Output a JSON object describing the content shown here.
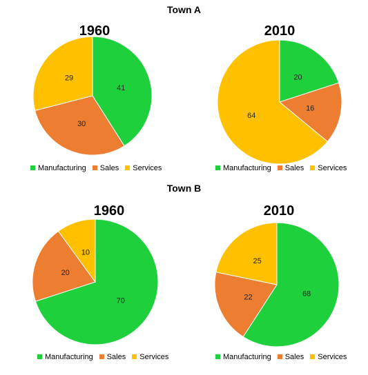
{
  "colors": {
    "Manufacturing": "#1ED13C",
    "Sales": "#ED7D31",
    "Services": "#FFC000"
  },
  "town_a": {
    "title": "Town A"
  },
  "town_b": {
    "title": "Town B"
  },
  "chart_data": [
    {
      "type": "pie",
      "group": "Town A",
      "title": "1960",
      "slices": [
        {
          "label": "Manufacturing",
          "value": 41
        },
        {
          "label": "Sales",
          "value": 30
        },
        {
          "label": "Services",
          "value": 29
        }
      ],
      "legend": [
        "Manufacturing",
        "Sales",
        "Services"
      ]
    },
    {
      "type": "pie",
      "group": "Town A",
      "title": "2010",
      "slices": [
        {
          "label": "Manufacturing",
          "value": 20
        },
        {
          "label": "Sales",
          "value": 16
        },
        {
          "label": "Services",
          "value": 64
        }
      ],
      "legend": [
        "Manufacturing",
        "Sales",
        "Services"
      ]
    },
    {
      "type": "pie",
      "group": "Town B",
      "title": "1960",
      "slices": [
        {
          "label": "Manufacturing",
          "value": 70
        },
        {
          "label": "Sales",
          "value": 20
        },
        {
          "label": "Services",
          "value": 10
        }
      ],
      "legend": [
        "Manufacturing",
        "Sales",
        "Services"
      ]
    },
    {
      "type": "pie",
      "group": "Town B",
      "title": "2010",
      "slices": [
        {
          "label": "Manufacturing",
          "value": 68
        },
        {
          "label": "Sales",
          "value": 22
        },
        {
          "label": "Services",
          "value": 25
        }
      ],
      "legend": [
        "Manufacturing",
        "Sales",
        "Services"
      ]
    }
  ]
}
